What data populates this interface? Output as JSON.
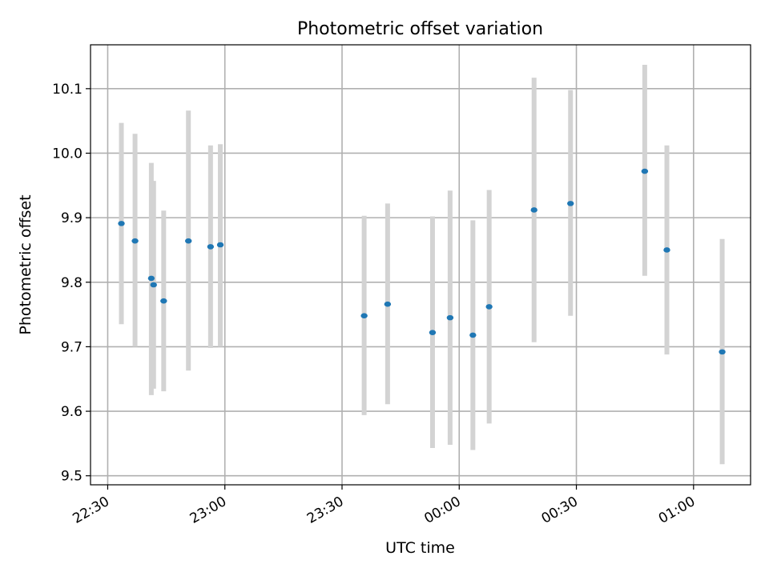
{
  "chart_data": {
    "type": "scatter",
    "title": "Photometric offset variation",
    "xlabel": "UTC time",
    "ylabel": "Photometric offset",
    "x_ticks": [
      "22:30",
      "23:00",
      "23:30",
      "00:00",
      "00:30",
      "01:00"
    ],
    "y_ticks": [
      "9.5",
      "9.6",
      "9.7",
      "9.8",
      "9.9",
      "10.0",
      "10.1"
    ],
    "x_tick_minutes": [
      0,
      30,
      60,
      90,
      120,
      150
    ],
    "xlim_minutes": [
      -4.4,
      164.6
    ],
    "ylim": [
      9.486,
      10.168
    ],
    "grid": true,
    "colors": {
      "point": "#1f77b4",
      "errorbar": "#d3d3d3"
    },
    "points": [
      {
        "t": "22:33:30",
        "y": 9.891,
        "lo": 9.735,
        "hi": 10.047
      },
      {
        "t": "22:37:00",
        "y": 9.864,
        "lo": 9.7,
        "hi": 10.03
      },
      {
        "t": "22:41:10",
        "y": 9.806,
        "lo": 9.625,
        "hi": 9.985
      },
      {
        "t": "22:41:45",
        "y": 9.796,
        "lo": 9.635,
        "hi": 9.957
      },
      {
        "t": "22:44:20",
        "y": 9.771,
        "lo": 9.631,
        "hi": 9.911
      },
      {
        "t": "22:50:40",
        "y": 9.864,
        "lo": 9.663,
        "hi": 10.066
      },
      {
        "t": "22:56:20",
        "y": 9.855,
        "lo": 9.698,
        "hi": 10.012
      },
      {
        "t": "22:58:50",
        "y": 9.858,
        "lo": 9.7,
        "hi": 10.014
      },
      {
        "t": "23:35:40",
        "y": 9.748,
        "lo": 9.594,
        "hi": 9.903
      },
      {
        "t": "23:41:40",
        "y": 9.766,
        "lo": 9.611,
        "hi": 9.922
      },
      {
        "t": "23:53:10",
        "y": 9.722,
        "lo": 9.543,
        "hi": 9.902
      },
      {
        "t": "23:57:40",
        "y": 9.745,
        "lo": 9.548,
        "hi": 9.942
      },
      {
        "t": "00:03:30",
        "y": 9.718,
        "lo": 9.54,
        "hi": 9.896
      },
      {
        "t": "00:07:40",
        "y": 9.762,
        "lo": 9.581,
        "hi": 9.943
      },
      {
        "t": "00:19:10",
        "y": 9.912,
        "lo": 9.707,
        "hi": 10.117
      },
      {
        "t": "00:28:30",
        "y": 9.922,
        "lo": 9.748,
        "hi": 10.098
      },
      {
        "t": "00:47:30",
        "y": 9.972,
        "lo": 9.81,
        "hi": 10.137
      },
      {
        "t": "00:53:10",
        "y": 9.85,
        "lo": 9.688,
        "hi": 10.012
      },
      {
        "t": "01:07:20",
        "y": 9.692,
        "lo": 9.518,
        "hi": 9.867
      }
    ]
  }
}
